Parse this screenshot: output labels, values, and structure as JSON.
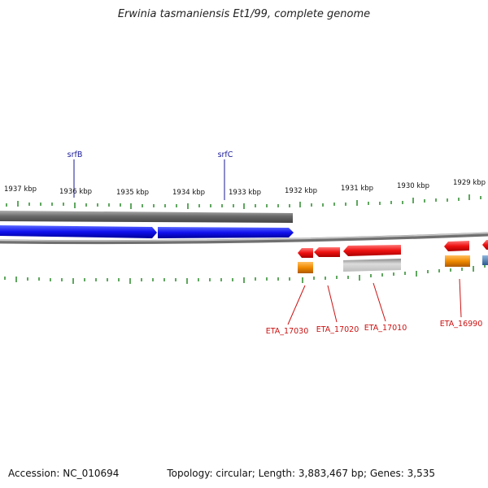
{
  "title": "Erwinia tasmaniensis Et1/99, complete genome",
  "footer": {
    "accession": "Accession: NC_010694",
    "summary": "Topology: circular; Length: 3,883,467 bp; Genes: 3,535"
  },
  "scale_labels": [
    "1937 kbp",
    "1936 kbp",
    "1935 kbp",
    "1934 kbp",
    "1933 kbp",
    "1932 kbp",
    "1931 kbp",
    "1930 kbp",
    "1929 kbp"
  ],
  "top_gene_labels": [
    "srfB",
    "srfC"
  ],
  "bottom_gene_labels": [
    "ETA_17030",
    "ETA_17020",
    "ETA_17010",
    "ETA_16990"
  ],
  "colors": {
    "forward_cds": "#1010ee",
    "reverse_cds": "#ee1111",
    "gene_track": "#777777",
    "tick": "#2a8a2a",
    "top_label": "#1a1a99",
    "bottom_label": "#cc1111",
    "orange_feature": "#f08a00",
    "blue_feature": "#3a7ab0"
  }
}
